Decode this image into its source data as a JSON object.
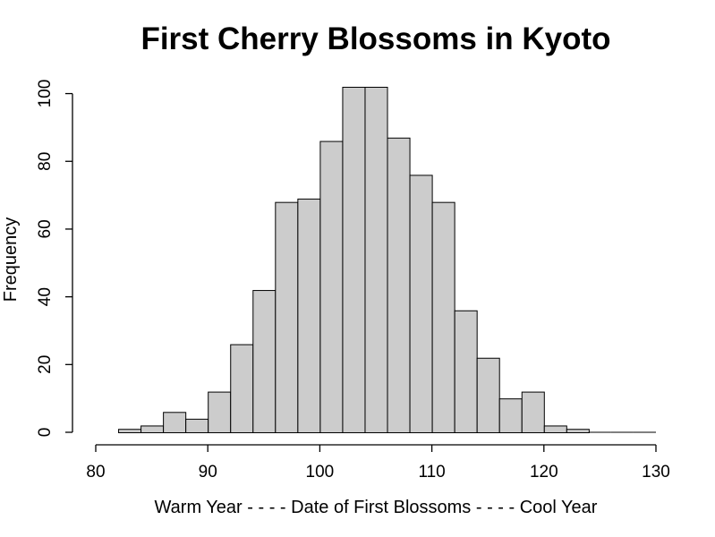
{
  "chart_data": {
    "type": "bar",
    "title": "First Cherry Blossoms in Kyoto",
    "xlabel": "Warm Year - - - - Date of First Blossoms - - - - Cool Year",
    "ylabel": "Frequency",
    "bin_width": 2,
    "bins": [
      {
        "start": 82,
        "end": 84,
        "count": 1
      },
      {
        "start": 84,
        "end": 86,
        "count": 2
      },
      {
        "start": 86,
        "end": 88,
        "count": 6
      },
      {
        "start": 88,
        "end": 90,
        "count": 4
      },
      {
        "start": 90,
        "end": 92,
        "count": 12
      },
      {
        "start": 92,
        "end": 94,
        "count": 26
      },
      {
        "start": 94,
        "end": 96,
        "count": 42
      },
      {
        "start": 96,
        "end": 98,
        "count": 68
      },
      {
        "start": 98,
        "end": 100,
        "count": 69
      },
      {
        "start": 100,
        "end": 102,
        "count": 86
      },
      {
        "start": 102,
        "end": 104,
        "count": 102
      },
      {
        "start": 104,
        "end": 106,
        "count": 102
      },
      {
        "start": 106,
        "end": 108,
        "count": 87
      },
      {
        "start": 108,
        "end": 110,
        "count": 76
      },
      {
        "start": 110,
        "end": 112,
        "count": 68
      },
      {
        "start": 112,
        "end": 114,
        "count": 36
      },
      {
        "start": 114,
        "end": 116,
        "count": 22
      },
      {
        "start": 116,
        "end": 118,
        "count": 10
      },
      {
        "start": 118,
        "end": 120,
        "count": 12
      },
      {
        "start": 120,
        "end": 122,
        "count": 2
      },
      {
        "start": 122,
        "end": 124,
        "count": 1
      },
      {
        "start": 124,
        "end": 126,
        "count": 0
      },
      {
        "start": 126,
        "end": 128,
        "count": 0
      },
      {
        "start": 128,
        "end": 130,
        "count": 0
      }
    ],
    "xlim": [
      80,
      130
    ],
    "ylim": [
      0,
      102
    ],
    "x_ticks": [
      "80",
      "90",
      "100",
      "110",
      "120",
      "130"
    ],
    "y_ticks": [
      "0",
      "20",
      "40",
      "60",
      "80",
      "100"
    ],
    "bar_fill": "#cccccc",
    "bar_stroke": "#000000",
    "grid": false,
    "legend": "none"
  }
}
